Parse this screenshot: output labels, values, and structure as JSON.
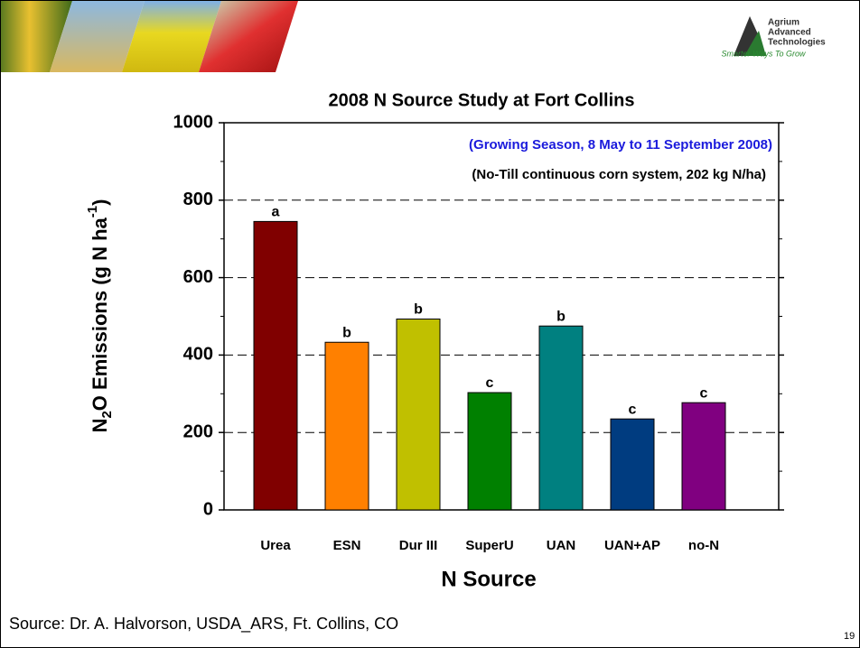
{
  "header": {
    "logo_lines": [
      "Agrium",
      "Advanced",
      "Technologies"
    ],
    "tagline": "Smarter Ways To Grow"
  },
  "chart_data": {
    "type": "bar",
    "title": "2008 N Source Study at Fort Collins",
    "subtitles": [
      "(Growing Season, 8 May to 11 September 2008)",
      "(No-Till continuous corn system, 202 kg N/ha)"
    ],
    "subtitle_colors": [
      "#1a1adc",
      "#000000"
    ],
    "y_label_parts": [
      "N",
      "2",
      "O Emissions (g N ha",
      "-1",
      ")"
    ],
    "x_label": "N Source",
    "categories": [
      "Urea",
      "ESN",
      "Dur III",
      "SuperU",
      "UAN",
      "UAN+AP",
      "no-N"
    ],
    "values": [
      745,
      433,
      493,
      303,
      475,
      235,
      277
    ],
    "colors": [
      "#800000",
      "#ff8000",
      "#c0c000",
      "#008000",
      "#008080",
      "#003c80",
      "#800080"
    ],
    "annotations": [
      "a",
      "b",
      "b",
      "c",
      "b",
      "c",
      "c"
    ],
    "ylim": [
      0,
      1000
    ],
    "yticks": [
      0,
      200,
      400,
      600,
      800,
      1000
    ],
    "minor_yticks": [
      100,
      300,
      500,
      700,
      900
    ],
    "grid": true
  },
  "footer": {
    "source": "Source:  Dr. A. Halvorson, USDA_ARS, Ft. Collins, CO",
    "page": "19"
  }
}
